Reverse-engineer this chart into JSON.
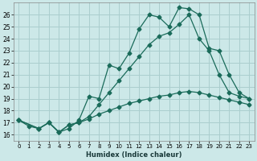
{
  "xlabel": "Humidex (Indice chaleur)",
  "bg_color": "#cce8e8",
  "grid_color": "#aacece",
  "line_color": "#1a6b5a",
  "xlim": [
    -0.5,
    23.5
  ],
  "ylim": [
    15.5,
    27.0
  ],
  "yticks": [
    16,
    17,
    18,
    19,
    20,
    21,
    22,
    23,
    24,
    25,
    26
  ],
  "xticks": [
    0,
    1,
    2,
    3,
    4,
    5,
    6,
    7,
    8,
    9,
    10,
    11,
    12,
    13,
    14,
    15,
    16,
    17,
    18,
    19,
    20,
    21,
    22,
    23
  ],
  "line1_x": [
    0,
    1,
    2,
    3,
    4,
    5,
    6,
    7,
    8,
    9,
    10,
    11,
    12,
    13,
    14,
    15,
    16,
    17,
    18,
    19,
    20,
    21,
    22,
    23
  ],
  "line1_y": [
    17.2,
    16.7,
    16.5,
    17.0,
    16.2,
    16.5,
    17.2,
    19.2,
    19.0,
    21.8,
    21.5,
    22.8,
    24.8,
    26.0,
    25.8,
    25.0,
    26.6,
    26.5,
    26.0,
    23.2,
    23.0,
    21.0,
    19.5,
    19.0
  ],
  "line2_x": [
    0,
    2,
    3,
    4,
    5,
    6,
    7,
    8,
    9,
    10,
    11,
    12,
    13,
    14,
    15,
    16,
    17,
    18,
    19,
    20,
    21,
    22,
    23
  ],
  "line2_y": [
    17.2,
    16.5,
    17.0,
    16.2,
    16.8,
    17.0,
    17.5,
    18.5,
    19.5,
    20.5,
    21.5,
    22.5,
    23.5,
    24.2,
    24.5,
    25.2,
    26.0,
    24.0,
    23.0,
    21.0,
    19.5,
    19.2,
    19.0
  ],
  "line3_x": [
    0,
    2,
    3,
    4,
    5,
    6,
    7,
    8,
    9,
    10,
    11,
    12,
    13,
    14,
    15,
    16,
    17,
    18,
    19,
    20,
    21,
    22,
    23
  ],
  "line3_y": [
    17.2,
    16.5,
    17.0,
    16.2,
    16.8,
    17.0,
    17.3,
    17.7,
    18.0,
    18.3,
    18.6,
    18.8,
    19.0,
    19.2,
    19.3,
    19.5,
    19.6,
    19.5,
    19.3,
    19.1,
    18.9,
    18.7,
    18.5
  ]
}
